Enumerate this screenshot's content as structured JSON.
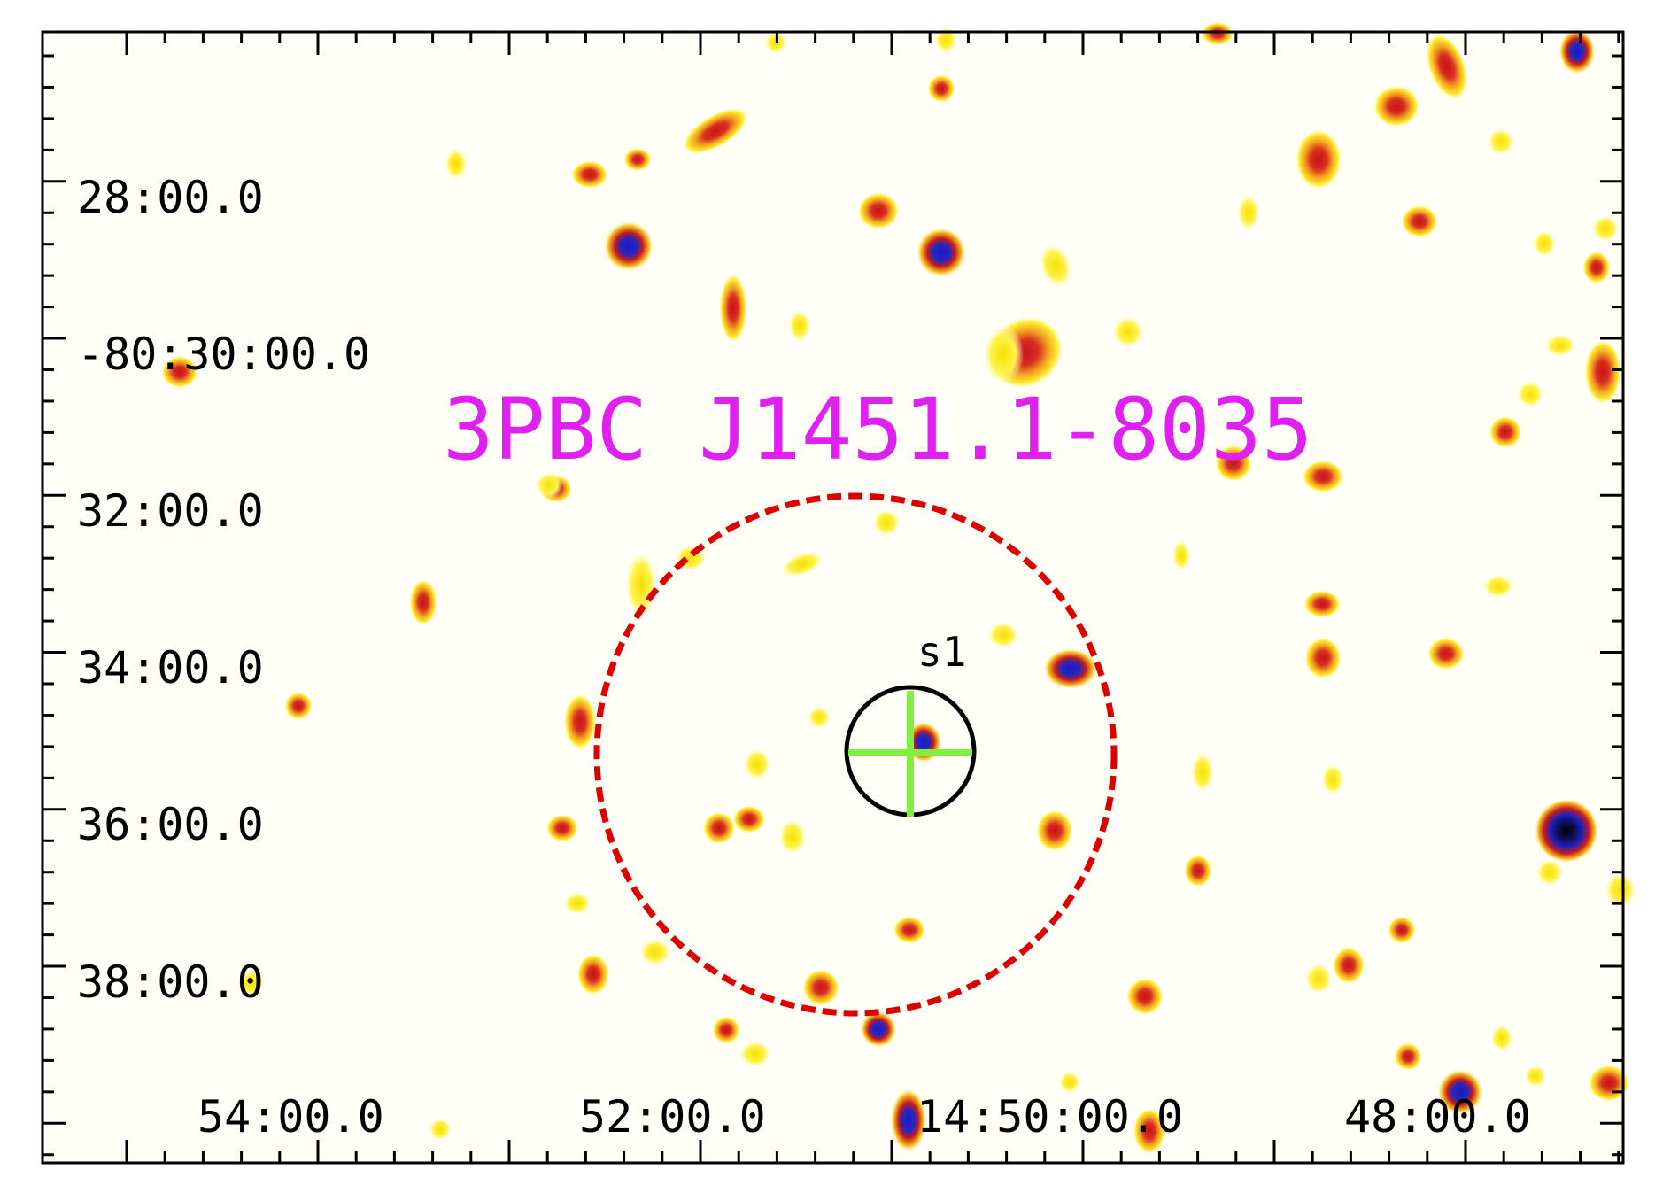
{
  "title": "3PBC J1451.1-8035",
  "source_label": "s1",
  "axes": {
    "dec_tick_labels": [
      "28:00.0",
      "-80:30:00.0",
      "32:00.0",
      "34:00.0",
      "36:00.0",
      "38:00.0"
    ],
    "ra_tick_labels": [
      "54:00.0",
      "52:00.0",
      "14:50:00.0",
      "48:00.0"
    ]
  },
  "colors": {
    "title": "#e020f0",
    "error_ellipse": "#dd0000",
    "source_circle": "#000000",
    "crosshair": "#80f040",
    "frame": "#000000",
    "background": "#fffff8"
  }
}
